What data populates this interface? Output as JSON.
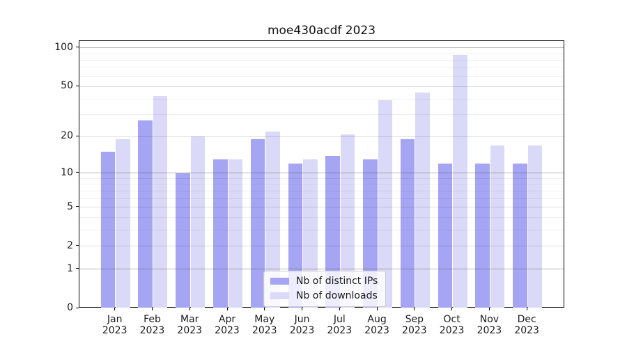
{
  "title": "moe430acdf 2023",
  "colors": {
    "distinct_ips_bar": "#a5a5f3",
    "downloads_bar": "#dadaf8",
    "axis": "#000000",
    "text": "#1a1a1a"
  },
  "legend": {
    "items": [
      {
        "label": "Nb of distinct IPs",
        "color": "#a5a5f3"
      },
      {
        "label": "Nb of downloads",
        "color": "#dadaf8"
      }
    ]
  },
  "x_axis": {
    "tick_labels": [
      {
        "month": "Jan",
        "year": "2023"
      },
      {
        "month": "Feb",
        "year": "2023"
      },
      {
        "month": "Mar",
        "year": "2023"
      },
      {
        "month": "Apr",
        "year": "2023"
      },
      {
        "month": "May",
        "year": "2023"
      },
      {
        "month": "Jun",
        "year": "2023"
      },
      {
        "month": "Jul",
        "year": "2023"
      },
      {
        "month": "Aug",
        "year": "2023"
      },
      {
        "month": "Sep",
        "year": "2023"
      },
      {
        "month": "Oct",
        "year": "2023"
      },
      {
        "month": "Nov",
        "year": "2023"
      },
      {
        "month": "Dec",
        "year": "2023"
      }
    ]
  },
  "y_axis": {
    "tick_labels": [
      "100",
      "50",
      "20",
      "10",
      "5",
      "2",
      "1",
      "0"
    ],
    "tick_values": [
      100,
      50,
      20,
      10,
      5,
      2,
      1,
      0
    ],
    "gridlines": {
      "major": [
        1,
        10,
        100
      ],
      "mid": [
        2,
        5,
        20,
        50
      ],
      "minor": [
        3,
        4,
        6,
        7,
        8,
        9,
        30,
        40,
        60,
        70,
        80,
        90
      ]
    }
  },
  "chart_data": {
    "type": "bar",
    "title": "moe430acdf 2023",
    "yscale": "log1p",
    "ylim": [
      0,
      112
    ],
    "grid": true,
    "legend_position": "inside lower center",
    "categories": [
      "Jan 2023",
      "Feb 2023",
      "Mar 2023",
      "Apr 2023",
      "May 2023",
      "Jun 2023",
      "Jul 2023",
      "Aug 2023",
      "Sep 2023",
      "Oct 2023",
      "Nov 2023",
      "Dec 2023"
    ],
    "series": [
      {
        "name": "Nb of distinct IPs",
        "color": "#a5a5f3",
        "values": [
          15,
          27,
          10,
          13,
          19,
          12,
          14,
          13,
          19,
          12,
          12,
          12
        ]
      },
      {
        "name": "Nb of downloads",
        "color": "#dadaf8",
        "values": [
          19,
          42,
          20,
          13,
          22,
          13,
          21,
          39,
          45,
          88,
          17,
          17
        ]
      }
    ]
  }
}
